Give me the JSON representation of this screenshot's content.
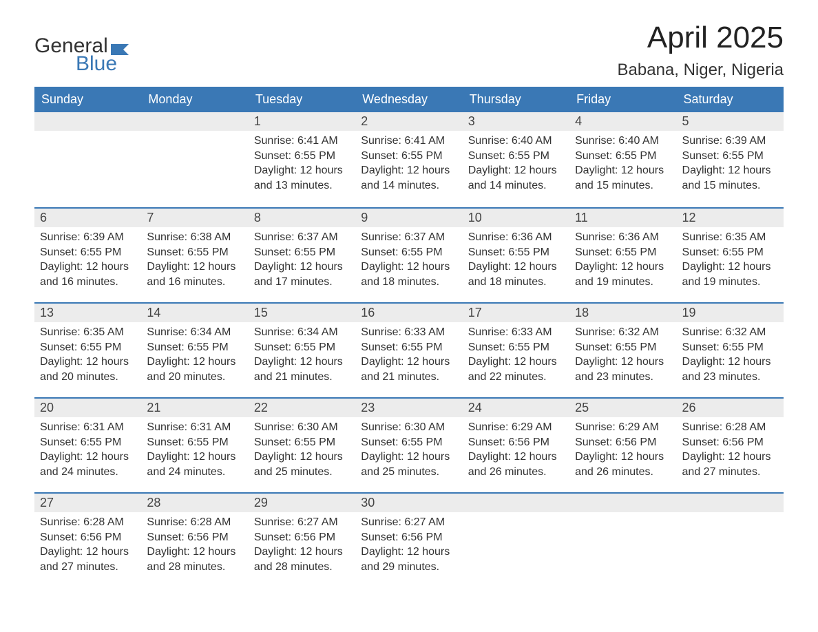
{
  "brand": {
    "word1": "General",
    "word2": "Blue",
    "accent_color": "#3a78b5"
  },
  "title": "April 2025",
  "location": "Babana, Niger, Nigeria",
  "colors": {
    "header_bg": "#3a78b5",
    "header_text": "#ffffff",
    "daynum_bg": "#ececec",
    "row_divider": "#3a78b5",
    "body_text": "#333333",
    "page_bg": "#ffffff"
  },
  "day_headers": [
    "Sunday",
    "Monday",
    "Tuesday",
    "Wednesday",
    "Thursday",
    "Friday",
    "Saturday"
  ],
  "weeks": [
    [
      null,
      null,
      {
        "n": "1",
        "sunrise": "Sunrise: 6:41 AM",
        "sunset": "Sunset: 6:55 PM",
        "daylight": "Daylight: 12 hours and 13 minutes."
      },
      {
        "n": "2",
        "sunrise": "Sunrise: 6:41 AM",
        "sunset": "Sunset: 6:55 PM",
        "daylight": "Daylight: 12 hours and 14 minutes."
      },
      {
        "n": "3",
        "sunrise": "Sunrise: 6:40 AM",
        "sunset": "Sunset: 6:55 PM",
        "daylight": "Daylight: 12 hours and 14 minutes."
      },
      {
        "n": "4",
        "sunrise": "Sunrise: 6:40 AM",
        "sunset": "Sunset: 6:55 PM",
        "daylight": "Daylight: 12 hours and 15 minutes."
      },
      {
        "n": "5",
        "sunrise": "Sunrise: 6:39 AM",
        "sunset": "Sunset: 6:55 PM",
        "daylight": "Daylight: 12 hours and 15 minutes."
      }
    ],
    [
      {
        "n": "6",
        "sunrise": "Sunrise: 6:39 AM",
        "sunset": "Sunset: 6:55 PM",
        "daylight": "Daylight: 12 hours and 16 minutes."
      },
      {
        "n": "7",
        "sunrise": "Sunrise: 6:38 AM",
        "sunset": "Sunset: 6:55 PM",
        "daylight": "Daylight: 12 hours and 16 minutes."
      },
      {
        "n": "8",
        "sunrise": "Sunrise: 6:37 AM",
        "sunset": "Sunset: 6:55 PM",
        "daylight": "Daylight: 12 hours and 17 minutes."
      },
      {
        "n": "9",
        "sunrise": "Sunrise: 6:37 AM",
        "sunset": "Sunset: 6:55 PM",
        "daylight": "Daylight: 12 hours and 18 minutes."
      },
      {
        "n": "10",
        "sunrise": "Sunrise: 6:36 AM",
        "sunset": "Sunset: 6:55 PM",
        "daylight": "Daylight: 12 hours and 18 minutes."
      },
      {
        "n": "11",
        "sunrise": "Sunrise: 6:36 AM",
        "sunset": "Sunset: 6:55 PM",
        "daylight": "Daylight: 12 hours and 19 minutes."
      },
      {
        "n": "12",
        "sunrise": "Sunrise: 6:35 AM",
        "sunset": "Sunset: 6:55 PM",
        "daylight": "Daylight: 12 hours and 19 minutes."
      }
    ],
    [
      {
        "n": "13",
        "sunrise": "Sunrise: 6:35 AM",
        "sunset": "Sunset: 6:55 PM",
        "daylight": "Daylight: 12 hours and 20 minutes."
      },
      {
        "n": "14",
        "sunrise": "Sunrise: 6:34 AM",
        "sunset": "Sunset: 6:55 PM",
        "daylight": "Daylight: 12 hours and 20 minutes."
      },
      {
        "n": "15",
        "sunrise": "Sunrise: 6:34 AM",
        "sunset": "Sunset: 6:55 PM",
        "daylight": "Daylight: 12 hours and 21 minutes."
      },
      {
        "n": "16",
        "sunrise": "Sunrise: 6:33 AM",
        "sunset": "Sunset: 6:55 PM",
        "daylight": "Daylight: 12 hours and 21 minutes."
      },
      {
        "n": "17",
        "sunrise": "Sunrise: 6:33 AM",
        "sunset": "Sunset: 6:55 PM",
        "daylight": "Daylight: 12 hours and 22 minutes."
      },
      {
        "n": "18",
        "sunrise": "Sunrise: 6:32 AM",
        "sunset": "Sunset: 6:55 PM",
        "daylight": "Daylight: 12 hours and 23 minutes."
      },
      {
        "n": "19",
        "sunrise": "Sunrise: 6:32 AM",
        "sunset": "Sunset: 6:55 PM",
        "daylight": "Daylight: 12 hours and 23 minutes."
      }
    ],
    [
      {
        "n": "20",
        "sunrise": "Sunrise: 6:31 AM",
        "sunset": "Sunset: 6:55 PM",
        "daylight": "Daylight: 12 hours and 24 minutes."
      },
      {
        "n": "21",
        "sunrise": "Sunrise: 6:31 AM",
        "sunset": "Sunset: 6:55 PM",
        "daylight": "Daylight: 12 hours and 24 minutes."
      },
      {
        "n": "22",
        "sunrise": "Sunrise: 6:30 AM",
        "sunset": "Sunset: 6:55 PM",
        "daylight": "Daylight: 12 hours and 25 minutes."
      },
      {
        "n": "23",
        "sunrise": "Sunrise: 6:30 AM",
        "sunset": "Sunset: 6:55 PM",
        "daylight": "Daylight: 12 hours and 25 minutes."
      },
      {
        "n": "24",
        "sunrise": "Sunrise: 6:29 AM",
        "sunset": "Sunset: 6:56 PM",
        "daylight": "Daylight: 12 hours and 26 minutes."
      },
      {
        "n": "25",
        "sunrise": "Sunrise: 6:29 AM",
        "sunset": "Sunset: 6:56 PM",
        "daylight": "Daylight: 12 hours and 26 minutes."
      },
      {
        "n": "26",
        "sunrise": "Sunrise: 6:28 AM",
        "sunset": "Sunset: 6:56 PM",
        "daylight": "Daylight: 12 hours and 27 minutes."
      }
    ],
    [
      {
        "n": "27",
        "sunrise": "Sunrise: 6:28 AM",
        "sunset": "Sunset: 6:56 PM",
        "daylight": "Daylight: 12 hours and 27 minutes."
      },
      {
        "n": "28",
        "sunrise": "Sunrise: 6:28 AM",
        "sunset": "Sunset: 6:56 PM",
        "daylight": "Daylight: 12 hours and 28 minutes."
      },
      {
        "n": "29",
        "sunrise": "Sunrise: 6:27 AM",
        "sunset": "Sunset: 6:56 PM",
        "daylight": "Daylight: 12 hours and 28 minutes."
      },
      {
        "n": "30",
        "sunrise": "Sunrise: 6:27 AM",
        "sunset": "Sunset: 6:56 PM",
        "daylight": "Daylight: 12 hours and 29 minutes."
      },
      null,
      null,
      null
    ]
  ]
}
